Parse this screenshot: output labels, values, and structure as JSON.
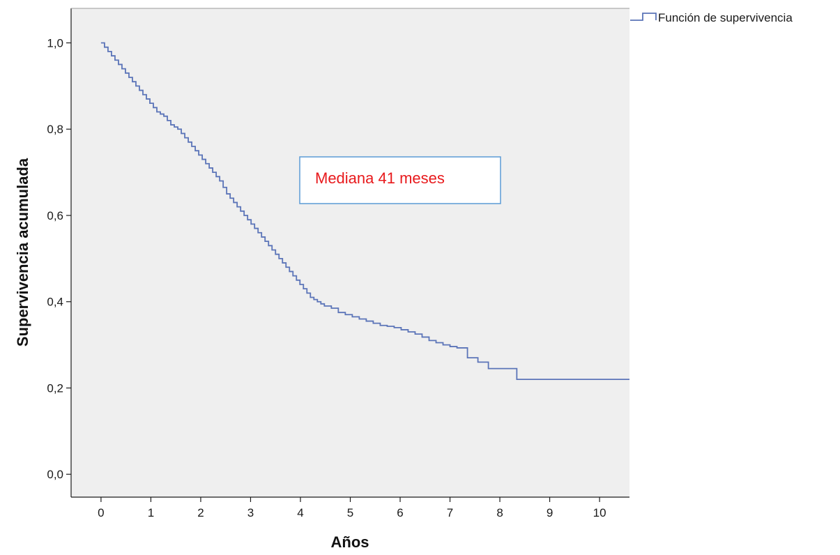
{
  "chart_data": {
    "type": "line",
    "step": true,
    "title": "",
    "xlabel": "Años",
    "ylabel": "Supervivencia acumulada",
    "xlim": [
      -0.6,
      10.6
    ],
    "ylim": [
      -0.053,
      1.08
    ],
    "x_ticks": [
      0,
      1,
      2,
      3,
      4,
      5,
      6,
      7,
      8,
      9,
      10
    ],
    "x_tick_labels": [
      "0",
      "1",
      "2",
      "3",
      "4",
      "5",
      "6",
      "7",
      "8",
      "9",
      "10"
    ],
    "y_ticks": [
      0.0,
      0.2,
      0.4,
      0.6,
      0.8,
      1.0
    ],
    "y_tick_labels": [
      "0,0",
      "0,2",
      "0,4",
      "0,6",
      "0,8",
      "1,0"
    ],
    "grid": false,
    "plot_background": "#efefef",
    "legend_position": "top-right outside",
    "series": [
      {
        "name": "Función de supervivencia",
        "color": "#5b74b8",
        "x": [
          0,
          0.07,
          0.14,
          0.21,
          0.28,
          0.35,
          0.42,
          0.49,
          0.56,
          0.63,
          0.7,
          0.77,
          0.84,
          0.91,
          0.98,
          1.05,
          1.12,
          1.19,
          1.26,
          1.33,
          1.4,
          1.47,
          1.54,
          1.61,
          1.68,
          1.75,
          1.82,
          1.89,
          1.96,
          2.03,
          2.1,
          2.17,
          2.24,
          2.31,
          2.38,
          2.45,
          2.52,
          2.59,
          2.66,
          2.73,
          2.8,
          2.87,
          2.94,
          3.01,
          3.08,
          3.15,
          3.22,
          3.29,
          3.36,
          3.43,
          3.5,
          3.57,
          3.64,
          3.71,
          3.78,
          3.85,
          3.92,
          3.99,
          4.06,
          4.13,
          4.2,
          4.27,
          4.34,
          4.41,
          4.48,
          4.62,
          4.76,
          4.9,
          5.04,
          5.18,
          5.32,
          5.46,
          5.6,
          5.74,
          5.88,
          6.02,
          6.16,
          6.3,
          6.44,
          6.58,
          6.72,
          6.86,
          7.0,
          7.14,
          7.28,
          7.35,
          7.56,
          7.77,
          8.05,
          8.34,
          10.6
        ],
        "y": [
          1.0,
          0.99,
          0.98,
          0.97,
          0.96,
          0.95,
          0.94,
          0.93,
          0.92,
          0.91,
          0.9,
          0.89,
          0.88,
          0.87,
          0.86,
          0.85,
          0.84,
          0.835,
          0.83,
          0.82,
          0.81,
          0.805,
          0.8,
          0.79,
          0.78,
          0.77,
          0.76,
          0.75,
          0.74,
          0.73,
          0.72,
          0.71,
          0.7,
          0.69,
          0.68,
          0.665,
          0.65,
          0.64,
          0.63,
          0.62,
          0.61,
          0.6,
          0.59,
          0.58,
          0.57,
          0.56,
          0.55,
          0.54,
          0.53,
          0.52,
          0.51,
          0.5,
          0.49,
          0.48,
          0.47,
          0.46,
          0.45,
          0.44,
          0.43,
          0.42,
          0.41,
          0.405,
          0.4,
          0.395,
          0.39,
          0.385,
          0.375,
          0.37,
          0.365,
          0.36,
          0.355,
          0.35,
          0.345,
          0.343,
          0.34,
          0.335,
          0.33,
          0.325,
          0.318,
          0.31,
          0.305,
          0.3,
          0.296,
          0.293,
          0.293,
          0.27,
          0.26,
          0.245,
          0.245,
          0.22,
          0.22
        ]
      }
    ]
  },
  "annotation": {
    "text": "Mediana 41 meses",
    "text_color": "#e8191c",
    "border_color": "#5b9bd5"
  }
}
